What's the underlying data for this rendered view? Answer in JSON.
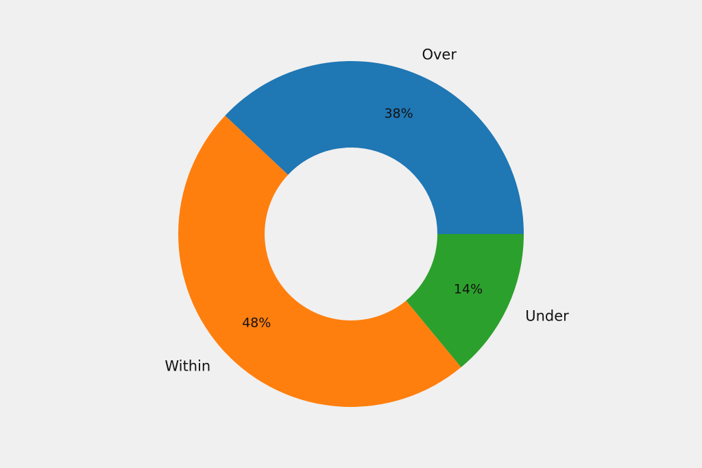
{
  "chart_data": {
    "type": "pie",
    "style": "donut",
    "slices": [
      {
        "label": "Over",
        "value": 38,
        "display": "38%",
        "color": "#1f77b4"
      },
      {
        "label": "Within",
        "value": 48,
        "display": "48%",
        "color": "#ff7f0e"
      },
      {
        "label": "Under",
        "value": 14,
        "display": "14%",
        "color": "#2ca02c"
      }
    ],
    "background": "#f0f0f0",
    "title": "",
    "legend": "none"
  }
}
